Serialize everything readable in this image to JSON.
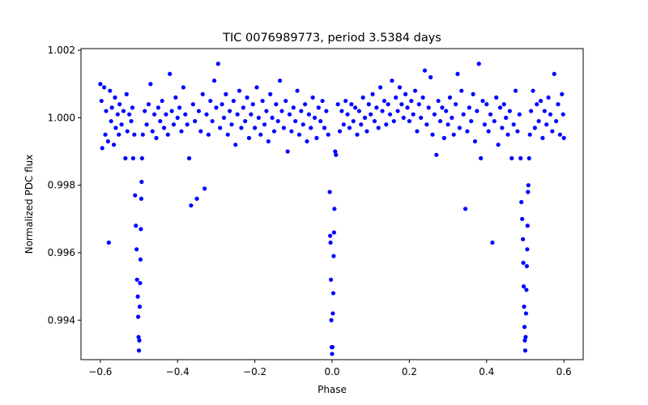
{
  "chart_data": {
    "type": "scatter",
    "title": "TIC 0076989773, period 3.5384 days",
    "xlabel": "Phase",
    "ylabel": "Normalized PDC flux",
    "xlim": [
      -0.65,
      0.65
    ],
    "ylim": [
      0.99283,
      1.00205
    ],
    "xticks": [
      -0.6,
      -0.4,
      -0.2,
      0.0,
      0.2,
      0.4,
      0.6
    ],
    "xtick_labels": [
      "−0.6",
      "−0.4",
      "−0.2",
      "0.0",
      "0.2",
      "0.4",
      "0.6"
    ],
    "yticks": [
      0.994,
      0.996,
      0.998,
      1.0,
      1.002
    ],
    "ytick_labels": [
      "0.994",
      "0.996",
      "0.998",
      "1.000",
      "1.002"
    ],
    "grid": false,
    "marker_color": "#0000ff",
    "series": [
      {
        "points": [
          [
            -0.6,
            1.001
          ],
          [
            -0.597,
            1.0005
          ],
          [
            -0.595,
            0.9991
          ],
          [
            -0.59,
            1.0009
          ],
          [
            -0.587,
            0.9995
          ],
          [
            -0.585,
            1.0002
          ],
          [
            -0.58,
            0.9993
          ],
          [
            -0.578,
            0.9963
          ],
          [
            -0.575,
            1.0008
          ],
          [
            -0.572,
            0.9999
          ],
          [
            -0.57,
            1.0003
          ],
          [
            -0.565,
            0.9992
          ],
          [
            -0.562,
            1.0006
          ],
          [
            -0.56,
            0.9997
          ],
          [
            -0.555,
            1.0001
          ],
          [
            -0.552,
            0.9995
          ],
          [
            -0.55,
            1.0004
          ],
          [
            -0.545,
            0.9998
          ],
          [
            -0.54,
            1.0002
          ],
          [
            -0.535,
            0.9988
          ],
          [
            -0.532,
            1.0007
          ],
          [
            -0.53,
            0.9996
          ],
          [
            -0.525,
            1.0001
          ],
          [
            -0.52,
            0.9999
          ],
          [
            -0.517,
            1.0003
          ],
          [
            -0.515,
            0.9988
          ],
          [
            -0.512,
            0.9995
          ],
          [
            -0.51,
            0.9977
          ],
          [
            -0.508,
            0.9968
          ],
          [
            -0.506,
            0.9961
          ],
          [
            -0.505,
            0.9952
          ],
          [
            -0.503,
            0.9947
          ],
          [
            -0.502,
            0.9941
          ],
          [
            -0.501,
            0.9935
          ],
          [
            -0.5,
            0.9931
          ],
          [
            -0.499,
            0.9934
          ],
          [
            -0.498,
            0.9944
          ],
          [
            -0.497,
            0.9951
          ],
          [
            -0.496,
            0.9958
          ],
          [
            -0.495,
            0.9967
          ],
          [
            -0.494,
            0.9976
          ],
          [
            -0.493,
            0.9981
          ],
          [
            -0.492,
            0.9988
          ],
          [
            -0.49,
            0.9995
          ],
          [
            -0.485,
            1.0002
          ],
          [
            -0.48,
            0.9998
          ],
          [
            -0.475,
            1.0004
          ],
          [
            -0.47,
            1.001
          ],
          [
            -0.465,
            0.9996
          ],
          [
            -0.46,
            1.0001
          ],
          [
            -0.455,
            0.9994
          ],
          [
            -0.45,
            1.0003
          ],
          [
            -0.445,
            0.9999
          ],
          [
            -0.44,
            1.0005
          ],
          [
            -0.435,
            0.9997
          ],
          [
            -0.43,
            1.0001
          ],
          [
            -0.425,
            0.9995
          ],
          [
            -0.42,
            1.0013
          ],
          [
            -0.415,
            1.0002
          ],
          [
            -0.41,
            0.9998
          ],
          [
            -0.405,
            1.0006
          ],
          [
            -0.4,
            1.0
          ],
          [
            -0.395,
            1.0003
          ],
          [
            -0.39,
            0.9996
          ],
          [
            -0.385,
            1.0009
          ],
          [
            -0.38,
            1.0001
          ],
          [
            -0.375,
            0.9998
          ],
          [
            -0.37,
            0.9988
          ],
          [
            -0.365,
            0.9974
          ],
          [
            -0.36,
            1.0004
          ],
          [
            -0.355,
            0.9999
          ],
          [
            -0.35,
            0.9976
          ],
          [
            -0.345,
            1.0002
          ],
          [
            -0.34,
            0.9996
          ],
          [
            -0.335,
            1.0007
          ],
          [
            -0.33,
            0.9979
          ],
          [
            -0.325,
            1.0001
          ],
          [
            -0.32,
            0.9995
          ],
          [
            -0.315,
            1.0005
          ],
          [
            -0.31,
            0.9999
          ],
          [
            -0.305,
            1.0011
          ],
          [
            -0.3,
            1.0003
          ],
          [
            -0.295,
            1.0016
          ],
          [
            -0.29,
            0.9997
          ],
          [
            -0.285,
            1.0004
          ],
          [
            -0.28,
            1.0
          ],
          [
            -0.275,
            1.0007
          ],
          [
            -0.27,
            0.9995
          ],
          [
            -0.265,
            1.0002
          ],
          [
            -0.26,
            0.9998
          ],
          [
            -0.255,
            1.0005
          ],
          [
            -0.25,
            0.9992
          ],
          [
            -0.245,
            1.0001
          ],
          [
            -0.24,
            1.0008
          ],
          [
            -0.235,
            0.9997
          ],
          [
            -0.23,
            1.0003
          ],
          [
            -0.225,
            0.9999
          ],
          [
            -0.22,
            1.0006
          ],
          [
            -0.215,
            0.9994
          ],
          [
            -0.21,
            1.0001
          ],
          [
            -0.205,
            1.0004
          ],
          [
            -0.2,
            0.9997
          ],
          [
            -0.195,
            1.0009
          ],
          [
            -0.19,
            1.0
          ],
          [
            -0.185,
            0.9995
          ],
          [
            -0.18,
            1.0005
          ],
          [
            -0.175,
            0.9998
          ],
          [
            -0.17,
            1.0002
          ],
          [
            -0.165,
            0.9993
          ],
          [
            -0.16,
            1.0007
          ],
          [
            -0.155,
            1.0
          ],
          [
            -0.15,
            0.9996
          ],
          [
            -0.145,
            1.0004
          ],
          [
            -0.14,
            0.9999
          ],
          [
            -0.135,
            1.0011
          ],
          [
            -0.13,
            1.0002
          ],
          [
            -0.125,
            0.9997
          ],
          [
            -0.12,
            1.0005
          ],
          [
            -0.115,
            0.999
          ],
          [
            -0.11,
            1.0001
          ],
          [
            -0.105,
            0.9996
          ],
          [
            -0.1,
            1.0003
          ],
          [
            -0.095,
            0.9999
          ],
          [
            -0.09,
            1.0008
          ],
          [
            -0.085,
            0.9995
          ],
          [
            -0.08,
            1.0002
          ],
          [
            -0.075,
            0.9998
          ],
          [
            -0.07,
            1.0004
          ],
          [
            -0.065,
            0.9993
          ],
          [
            -0.06,
            1.0001
          ],
          [
            -0.055,
            0.9997
          ],
          [
            -0.05,
            1.0006
          ],
          [
            -0.045,
            1.0
          ],
          [
            -0.04,
            0.9994
          ],
          [
            -0.035,
            1.0003
          ],
          [
            -0.03,
            0.9999
          ],
          [
            -0.025,
            1.0005
          ],
          [
            -0.02,
            0.9997
          ],
          [
            -0.015,
            1.0002
          ],
          [
            -0.01,
            0.9995
          ],
          [
            -0.006,
            0.9978
          ],
          [
            -0.005,
            0.9965
          ],
          [
            -0.004,
            0.9963
          ],
          [
            -0.003,
            0.9952
          ],
          [
            -0.002,
            0.994
          ],
          [
            -0.001,
            0.9932
          ],
          [
            0.0,
            0.993
          ],
          [
            0.001,
            0.9932
          ],
          [
            0.002,
            0.9942
          ],
          [
            0.003,
            0.9948
          ],
          [
            0.004,
            0.9959
          ],
          [
            0.005,
            0.9966
          ],
          [
            0.006,
            0.9973
          ],
          [
            0.008,
            0.999
          ],
          [
            0.01,
            0.9989
          ],
          [
            0.015,
            1.0004
          ],
          [
            0.02,
            0.9996
          ],
          [
            0.025,
            1.0002
          ],
          [
            0.03,
            0.9998
          ],
          [
            0.035,
            1.0005
          ],
          [
            0.04,
            1.0001
          ],
          [
            0.045,
            0.9997
          ],
          [
            0.05,
            1.0004
          ],
          [
            0.055,
            0.9999
          ],
          [
            0.06,
            1.0003
          ],
          [
            0.065,
            0.9995
          ],
          [
            0.07,
            1.0002
          ],
          [
            0.075,
            0.9998
          ],
          [
            0.08,
            1.0006
          ],
          [
            0.085,
            1.0
          ],
          [
            0.09,
            0.9996
          ],
          [
            0.095,
            1.0004
          ],
          [
            0.1,
            1.0001
          ],
          [
            0.105,
            1.0007
          ],
          [
            0.11,
            0.9999
          ],
          [
            0.115,
            1.0003
          ],
          [
            0.12,
            0.9997
          ],
          [
            0.125,
            1.0009
          ],
          [
            0.13,
            1.0002
          ],
          [
            0.135,
            1.0005
          ],
          [
            0.14,
            0.9998
          ],
          [
            0.145,
            1.0004
          ],
          [
            0.15,
            1.0001
          ],
          [
            0.155,
            1.0011
          ],
          [
            0.16,
            0.9999
          ],
          [
            0.165,
            1.0006
          ],
          [
            0.17,
            1.0002
          ],
          [
            0.175,
            1.0009
          ],
          [
            0.18,
            1.0004
          ],
          [
            0.185,
            1.0
          ],
          [
            0.19,
            1.0007
          ],
          [
            0.195,
            1.0003
          ],
          [
            0.2,
            0.9999
          ],
          [
            0.205,
            1.0005
          ],
          [
            0.21,
            1.0001
          ],
          [
            0.215,
            1.0008
          ],
          [
            0.22,
            0.9996
          ],
          [
            0.225,
            1.0004
          ],
          [
            0.23,
            1.0
          ],
          [
            0.235,
            1.0006
          ],
          [
            0.24,
            1.0014
          ],
          [
            0.245,
            0.9998
          ],
          [
            0.25,
            1.0003
          ],
          [
            0.255,
            1.0012
          ],
          [
            0.26,
            0.9995
          ],
          [
            0.265,
            1.0001
          ],
          [
            0.27,
            0.9989
          ],
          [
            0.275,
            1.0005
          ],
          [
            0.28,
            0.9999
          ],
          [
            0.285,
            1.0003
          ],
          [
            0.29,
            0.9994
          ],
          [
            0.295,
            1.0002
          ],
          [
            0.3,
            0.9998
          ],
          [
            0.305,
            1.0006
          ],
          [
            0.31,
            1.0
          ],
          [
            0.315,
            0.9995
          ],
          [
            0.32,
            1.0004
          ],
          [
            0.325,
            1.0013
          ],
          [
            0.33,
            0.9997
          ],
          [
            0.335,
            1.0008
          ],
          [
            0.34,
            1.0001
          ],
          [
            0.345,
            0.9973
          ],
          [
            0.35,
            0.9996
          ],
          [
            0.355,
            1.0003
          ],
          [
            0.36,
            0.9999
          ],
          [
            0.365,
            1.0007
          ],
          [
            0.37,
            0.9993
          ],
          [
            0.375,
            1.0002
          ],
          [
            0.38,
            1.0016
          ],
          [
            0.385,
            0.9988
          ],
          [
            0.39,
            1.0005
          ],
          [
            0.395,
            0.9998
          ],
          [
            0.4,
            1.0004
          ],
          [
            0.405,
            0.9996
          ],
          [
            0.41,
            1.0001
          ],
          [
            0.415,
            0.9963
          ],
          [
            0.42,
            0.9999
          ],
          [
            0.425,
            1.0006
          ],
          [
            0.43,
            0.9992
          ],
          [
            0.435,
            1.0003
          ],
          [
            0.44,
            0.9997
          ],
          [
            0.445,
            1.0004
          ],
          [
            0.45,
            1.0
          ],
          [
            0.455,
            0.9995
          ],
          [
            0.46,
            1.0002
          ],
          [
            0.465,
            0.9988
          ],
          [
            0.47,
            0.9998
          ],
          [
            0.475,
            1.0008
          ],
          [
            0.48,
            0.9996
          ],
          [
            0.485,
            1.0001
          ],
          [
            0.488,
            0.9988
          ],
          [
            0.49,
            0.9975
          ],
          [
            0.492,
            0.997
          ],
          [
            0.494,
            0.9964
          ],
          [
            0.495,
            0.9957
          ],
          [
            0.496,
            0.995
          ],
          [
            0.497,
            0.9944
          ],
          [
            0.498,
            0.9938
          ],
          [
            0.499,
            0.9934
          ],
          [
            0.5,
            0.9931
          ],
          [
            0.501,
            0.9935
          ],
          [
            0.502,
            0.9942
          ],
          [
            0.503,
            0.9949
          ],
          [
            0.504,
            0.9956
          ],
          [
            0.505,
            0.9961
          ],
          [
            0.506,
            0.9968
          ],
          [
            0.507,
            0.9978
          ],
          [
            0.508,
            0.998
          ],
          [
            0.51,
            0.9988
          ],
          [
            0.512,
            0.9995
          ],
          [
            0.515,
            1.0002
          ],
          [
            0.52,
            1.0008
          ],
          [
            0.525,
            0.9997
          ],
          [
            0.53,
            1.0004
          ],
          [
            0.535,
            0.9999
          ],
          [
            0.54,
            1.0005
          ],
          [
            0.545,
            0.9994
          ],
          [
            0.55,
            1.0002
          ],
          [
            0.555,
            0.9998
          ],
          [
            0.56,
            1.0006
          ],
          [
            0.565,
            1.0001
          ],
          [
            0.57,
            0.9996
          ],
          [
            0.575,
            1.0013
          ],
          [
            0.58,
            0.9999
          ],
          [
            0.585,
            1.0004
          ],
          [
            0.59,
            0.9995
          ],
          [
            0.595,
            1.0007
          ],
          [
            0.598,
            1.0001
          ],
          [
            0.6,
            0.9994
          ]
        ]
      }
    ]
  }
}
